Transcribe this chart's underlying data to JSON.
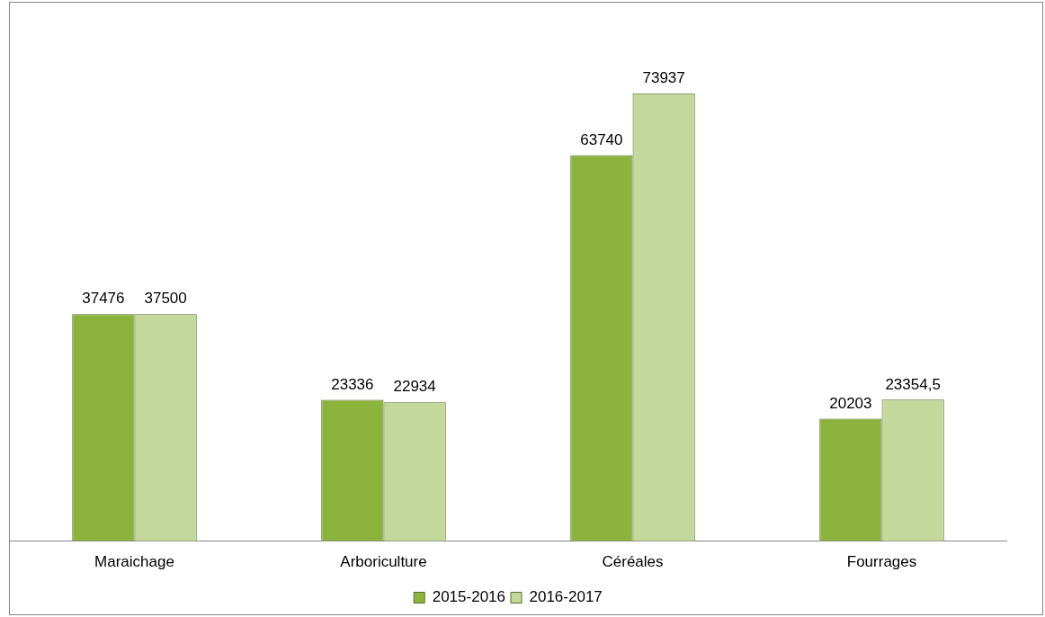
{
  "chart_data": {
    "type": "bar",
    "categories": [
      "Maraichage",
      "Arboriculture",
      "Céréales",
      "Fourrages"
    ],
    "series": [
      {
        "name": "2015-2016",
        "color": "#8cb43c",
        "values": [
          37476,
          23336,
          63740,
          20203
        ],
        "value_labels": [
          "37476",
          "23336",
          "63740",
          "20203"
        ]
      },
      {
        "name": "2016-2017",
        "color": "#c4d89c",
        "values": [
          37500,
          22934,
          73937,
          23354.5
        ],
        "value_labels": [
          "37500",
          "22934",
          "73937",
          "23354,5"
        ]
      }
    ],
    "legend": "bottom",
    "grid": false
  }
}
